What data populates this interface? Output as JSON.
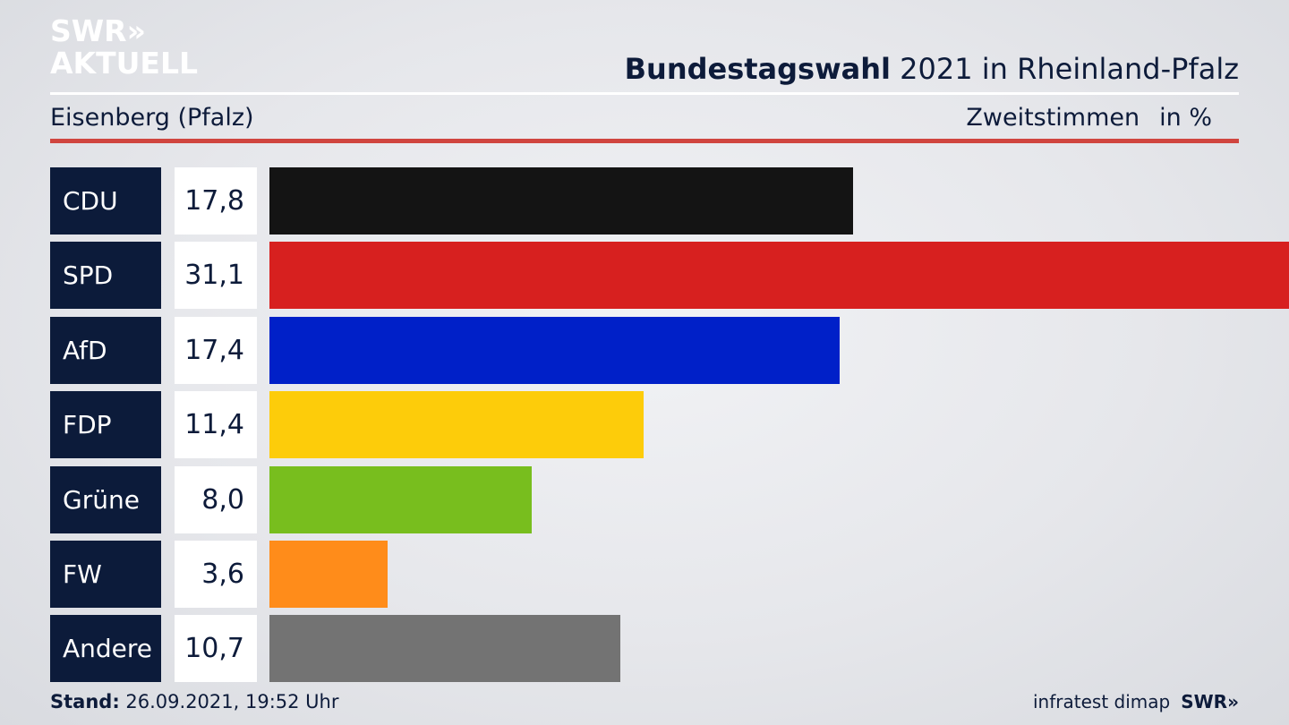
{
  "branding": {
    "logo_line1": "SWR»",
    "logo_line2": "AKTUELL",
    "footer_logo": "SWR»"
  },
  "header": {
    "title_bold": "Bundestagswahl",
    "title_rest": " 2021 in Rheinland-Pfalz",
    "location": "Eisenberg (Pfalz)",
    "vote_type": "Zweitstimmen",
    "unit": "in %"
  },
  "footer": {
    "stand_label": "Stand:",
    "stand_value": " 26.09.2021, 19:52 Uhr",
    "source": "infratest dimap"
  },
  "chart_data": {
    "type": "bar",
    "orientation": "horizontal",
    "categories": [
      "CDU",
      "SPD",
      "AfD",
      "FDP",
      "Grüne",
      "FW",
      "Andere"
    ],
    "values": [
      17.8,
      31.1,
      17.4,
      11.4,
      8.0,
      3.6,
      10.7
    ],
    "value_labels": [
      "17,8",
      "31,1",
      "17,4",
      "11,4",
      "8,0",
      "3,6",
      "10,7"
    ],
    "colors": [
      "#141414",
      "#d7201f",
      "#0020c8",
      "#fdcc0a",
      "#78be1e",
      "#ff8c1a",
      "#737373"
    ],
    "xlim": [
      0,
      31.1
    ],
    "grid": false,
    "legend": "none"
  }
}
